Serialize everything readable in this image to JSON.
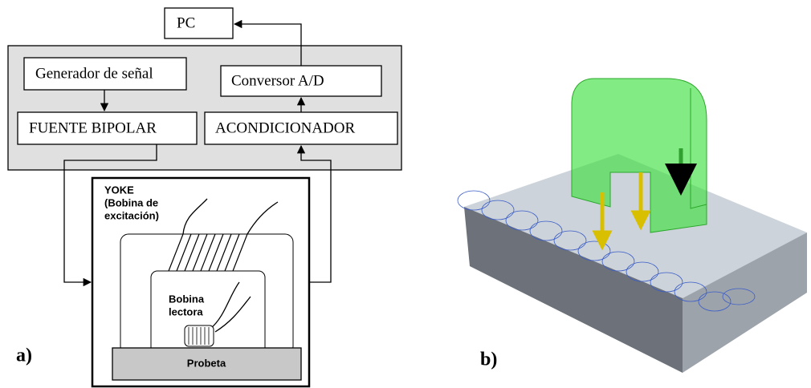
{
  "blocks": {
    "pc": "PC",
    "signal_generator": "Generador de señal",
    "ad_converter": "Conversor A/D",
    "bipolar_source": "FUENTE BIPOLAR",
    "conditioner": "ACONDICIONADOR"
  },
  "yoke_panel": {
    "yoke_label": [
      "YOKE",
      "(Bobina de",
      "excitación)"
    ],
    "reader_coil_label": [
      "Bobina",
      "lectora"
    ],
    "specimen_label": "Probeta"
  },
  "panel_labels": [
    "a)",
    "b)"
  ]
}
